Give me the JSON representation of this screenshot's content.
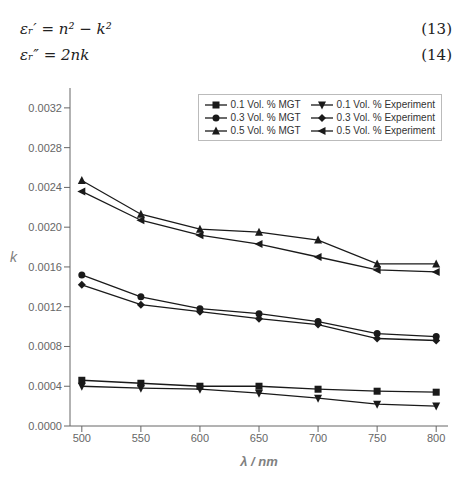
{
  "chart_data": {
    "type": "line",
    "annotations": [
      "εᵣ′ = n² − k²",
      "(13)",
      "εᵣ″ = 2nk",
      "(14)"
    ],
    "x": [
      500,
      550,
      600,
      650,
      700,
      750,
      800
    ],
    "series": [
      {
        "name": "0.1 Vol. % MGT",
        "color": "#1a1a1a",
        "marker": "square",
        "values": [
          0.00046,
          0.00043,
          0.0004,
          0.0004,
          0.00037,
          0.00035,
          0.00034
        ]
      },
      {
        "name": "0.3 Vol. % MGT",
        "color": "#1a1a1a",
        "marker": "circle",
        "values": [
          0.00152,
          0.0013,
          0.00118,
          0.00113,
          0.00105,
          0.00093,
          0.0009
        ]
      },
      {
        "name": "0.5 Vol. % MGT",
        "color": "#1a1a1a",
        "marker": "triangle-up",
        "values": [
          0.00247,
          0.00213,
          0.00198,
          0.00195,
          0.00187,
          0.00163,
          0.00163
        ]
      },
      {
        "name": "0.1 Vol. % Experiment",
        "color": "#1a1a1a",
        "marker": "triangle-down",
        "values": [
          0.0004,
          0.00038,
          0.00037,
          0.00033,
          0.00028,
          0.00022,
          0.0002
        ]
      },
      {
        "name": "0.3 Vol. % Experiment",
        "color": "#1a1a1a",
        "marker": "diamond",
        "values": [
          0.00142,
          0.00122,
          0.00115,
          0.00108,
          0.00102,
          0.00088,
          0.00086
        ]
      },
      {
        "name": "0.5 Vol. % Experiment",
        "color": "#1a1a1a",
        "marker": "triangle-left",
        "values": [
          0.00236,
          0.00207,
          0.00192,
          0.00183,
          0.0017,
          0.00157,
          0.00155
        ]
      }
    ],
    "xlabel": "λ / nm",
    "ylabel": "k",
    "xlim": [
      490,
      810
    ],
    "xticks": [
      500,
      550,
      600,
      650,
      700,
      750,
      800
    ],
    "ylim": [
      0.0,
      0.0034
    ],
    "yticks": [
      {
        "value": 0.0,
        "label": "0.0000"
      },
      {
        "value": 0.0004,
        "label": "0.0004"
      },
      {
        "value": 0.0008,
        "label": "0.0008"
      },
      {
        "value": 0.0012,
        "label": "0.0012"
      },
      {
        "value": 0.0016,
        "label": "0.0016"
      },
      {
        "value": 0.002,
        "label": "0.0020"
      },
      {
        "value": 0.0024,
        "label": "0.0024"
      },
      {
        "value": 0.0028,
        "label": "0.0028"
      },
      {
        "value": 0.0032,
        "label": "0.0032"
      }
    ],
    "grid": false,
    "legend": "upper right"
  }
}
